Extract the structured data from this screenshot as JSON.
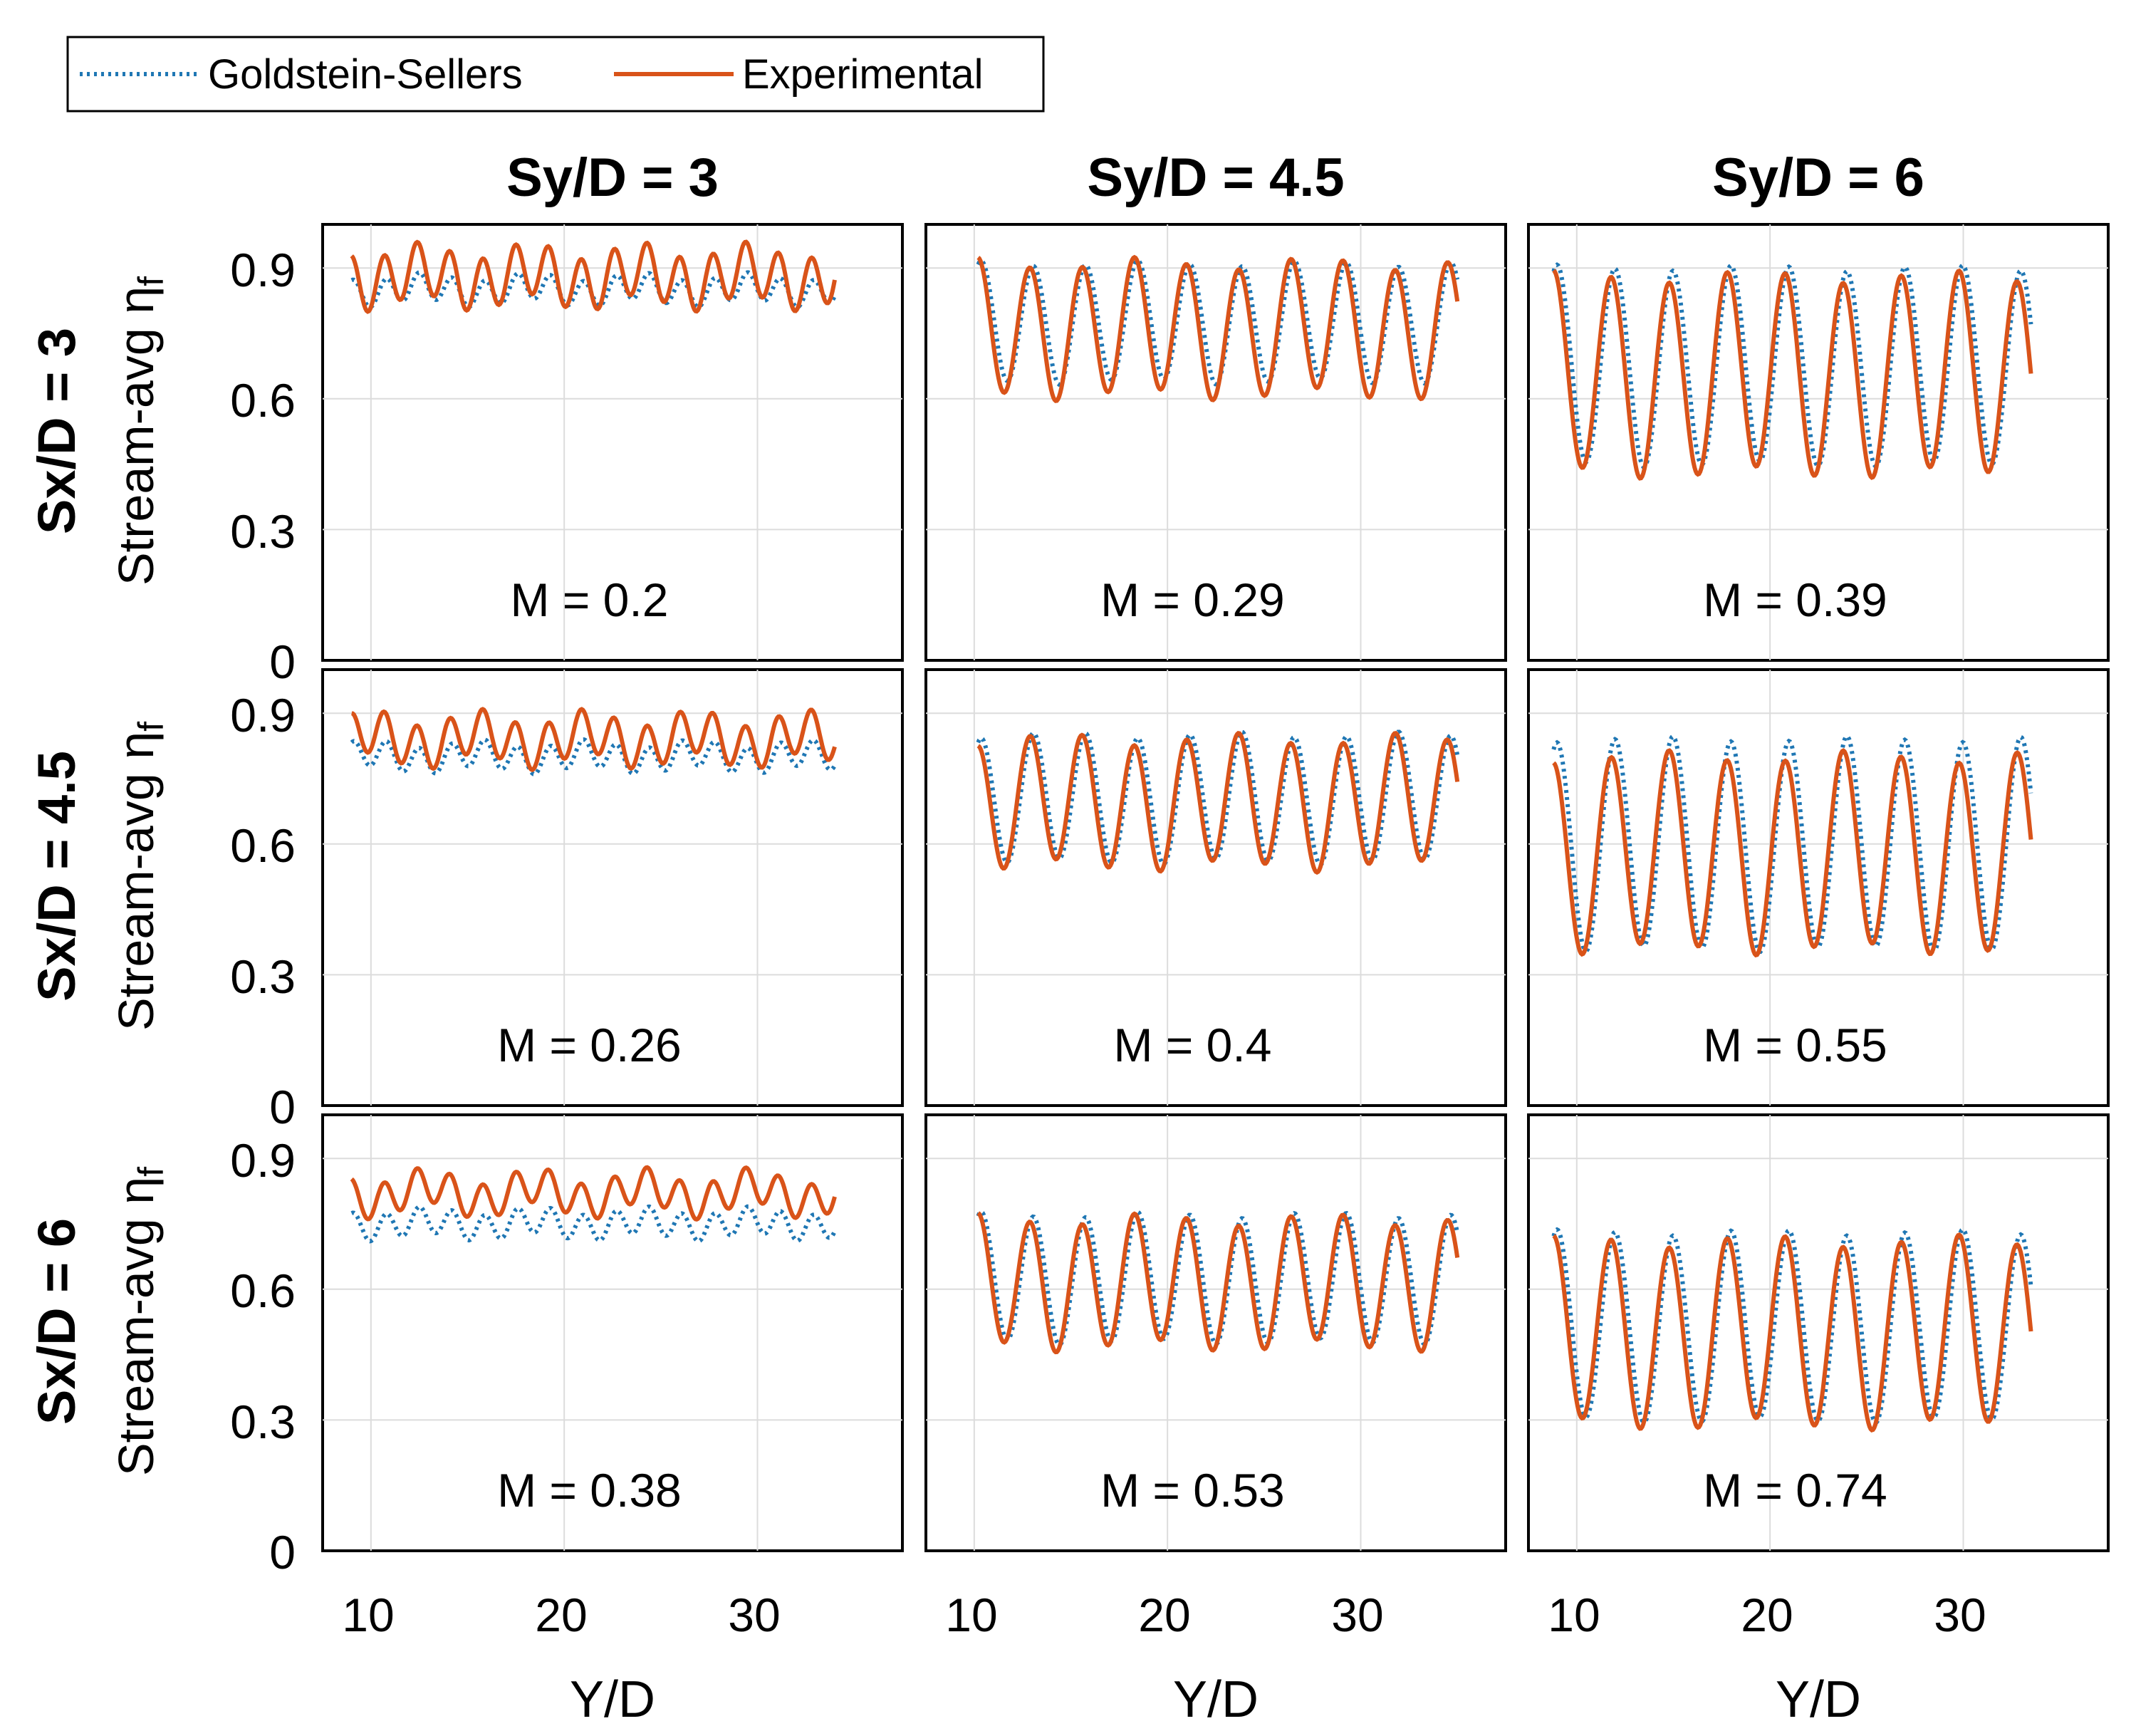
{
  "chart_data": {
    "type": "line",
    "layout": "3x3 small multiples",
    "legend": {
      "position": "top-left",
      "entries": [
        {
          "name": "Goldstein-Sellers",
          "style": "dotted",
          "color": "#1f77b4"
        },
        {
          "name": "Experimental",
          "style": "solid",
          "color": "#d95319"
        }
      ]
    },
    "column_titles": [
      "Sy/D = 3",
      "Sy/D = 4.5",
      "Sy/D = 6"
    ],
    "row_labels": [
      "Sx/D = 3",
      "Sx/D = 4.5",
      "Sx/D = 6"
    ],
    "ylabel": "Stream-avg η",
    "ylabel_subscript": "f",
    "xlabel": "Y/D",
    "xlim": [
      7.5,
      37.5
    ],
    "ylim": [
      0,
      1.0
    ],
    "yticks": [
      "0",
      "0.3",
      "0.6",
      "0.9"
    ],
    "xticks": [
      "10",
      "20",
      "30"
    ],
    "panels": [
      {
        "row": 0,
        "col": 0,
        "m_label": "M = 0.2",
        "x_start": 9.0,
        "x_end": 34.0,
        "period": 1.7,
        "goldstein_sellers": {
          "low": 0.82,
          "high": 0.88
        },
        "experimental": {
          "low": 0.82,
          "high": 0.94
        }
      },
      {
        "row": 0,
        "col": 1,
        "m_label": "M = 0.29",
        "x_start": 10.2,
        "x_end": 35.0,
        "period": 2.7,
        "goldstein_sellers": {
          "low": 0.64,
          "high": 0.91
        },
        "experimental": {
          "low": 0.61,
          "high": 0.91
        }
      },
      {
        "row": 0,
        "col": 2,
        "m_label": "M = 0.39",
        "x_start": 8.8,
        "x_end": 33.5,
        "period": 3.0,
        "goldstein_sellers": {
          "low": 0.45,
          "high": 0.9
        },
        "experimental": {
          "low": 0.43,
          "high": 0.88
        }
      },
      {
        "row": 1,
        "col": 0,
        "m_label": "M = 0.26",
        "x_start": 9.0,
        "x_end": 34.0,
        "period": 1.7,
        "goldstein_sellers": {
          "low": 0.77,
          "high": 0.83
        },
        "experimental": {
          "low": 0.79,
          "high": 0.89
        }
      },
      {
        "row": 1,
        "col": 1,
        "m_label": "M = 0.4",
        "x_start": 10.2,
        "x_end": 35.0,
        "period": 2.7,
        "goldstein_sellers": {
          "low": 0.56,
          "high": 0.85
        },
        "experimental": {
          "low": 0.55,
          "high": 0.84
        }
      },
      {
        "row": 1,
        "col": 2,
        "m_label": "M = 0.55",
        "x_start": 8.8,
        "x_end": 33.5,
        "period": 3.0,
        "goldstein_sellers": {
          "low": 0.36,
          "high": 0.84
        },
        "experimental": {
          "low": 0.36,
          "high": 0.8
        }
      },
      {
        "row": 2,
        "col": 0,
        "m_label": "M = 0.38",
        "x_start": 9.0,
        "x_end": 34.0,
        "period": 1.7,
        "goldstein_sellers": {
          "low": 0.72,
          "high": 0.78
        },
        "experimental": {
          "low": 0.78,
          "high": 0.86
        }
      },
      {
        "row": 2,
        "col": 1,
        "m_label": "M = 0.53",
        "x_start": 10.2,
        "x_end": 35.0,
        "period": 2.7,
        "goldstein_sellers": {
          "low": 0.48,
          "high": 0.77
        },
        "experimental": {
          "low": 0.47,
          "high": 0.76
        }
      },
      {
        "row": 2,
        "col": 2,
        "m_label": "M = 0.74",
        "x_start": 8.8,
        "x_end": 33.5,
        "period": 3.0,
        "goldstein_sellers": {
          "low": 0.3,
          "high": 0.73
        },
        "experimental": {
          "low": 0.29,
          "high": 0.71
        }
      }
    ]
  }
}
